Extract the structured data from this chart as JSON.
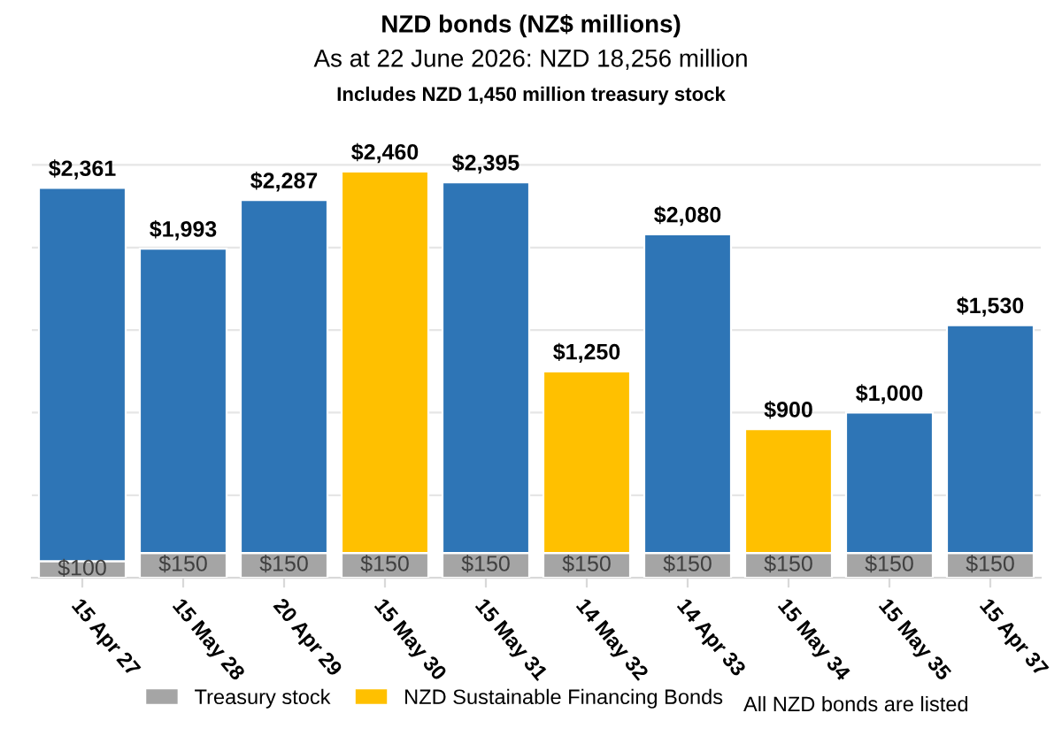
{
  "chart_data": {
    "type": "bar",
    "title": "NZD bonds (NZ$ millions)",
    "subtitle": "As at 22 June 2026: NZD 18,256 million",
    "annotations": [
      "Includes NZD 1,450 million treasury stock",
      "All NZD bonds are listed"
    ],
    "categories": [
      "15 Apr 27",
      "15 May 28",
      "20 Apr 29",
      "15 May 30",
      "15 May 31",
      "14 May 32",
      "14 Apr 33",
      "15 May 34",
      "15 May 35",
      "15 Apr 37"
    ],
    "stacked": true,
    "series": [
      {
        "name": "Treasury stock",
        "color": "#a5a5a5",
        "values": [
          100,
          150,
          150,
          150,
          150,
          150,
          150,
          150,
          150,
          150
        ],
        "value_labels": [
          "$100",
          "$150",
          "$150",
          "$150",
          "$150",
          "$150",
          "$150",
          "$150",
          "$150",
          "$150"
        ]
      },
      {
        "name": "NZD Sustainable Financing Bonds",
        "color": "#ffc000",
        "values": [
          null,
          null,
          null,
          2310,
          null,
          1100,
          null,
          750,
          null,
          null
        ]
      },
      {
        "color": "#2e75b6",
        "values": [
          2261,
          1843,
          2137,
          null,
          2245,
          null,
          1930,
          null,
          850,
          1380
        ]
      }
    ],
    "totals": [
      "$2,361",
      "$1,993",
      "$2,287",
      "$2,460",
      "$2,395",
      "$1,250",
      "$2,080",
      "$900",
      "$1,000",
      "$1,530"
    ],
    "yticks": [
      {
        "value": 0,
        "label": null
      },
      {
        "value": 500,
        "label": null
      },
      {
        "value": 1000,
        "label": null
      },
      {
        "value": 1500,
        "label": null
      },
      {
        "value": 2000,
        "label": null
      },
      {
        "value": 2500,
        "label": null
      }
    ],
    "grid": "y",
    "legend": "bottom"
  }
}
